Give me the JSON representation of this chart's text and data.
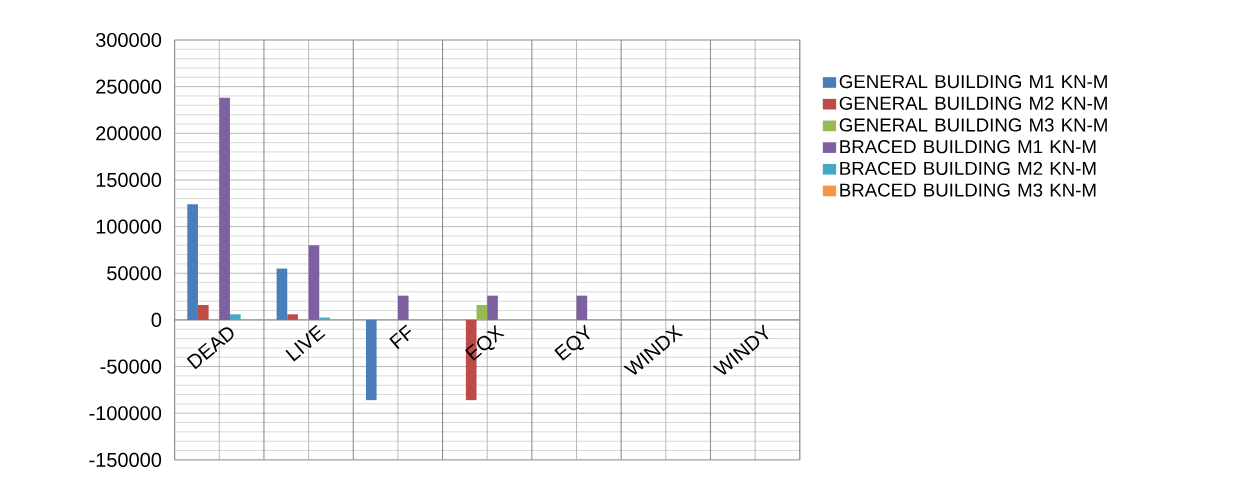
{
  "chart_data": {
    "type": "bar",
    "categories": [
      "DEAD",
      "LIVE",
      "FF",
      "EQX",
      "EQY",
      "WINDX",
      "WINDY"
    ],
    "series": [
      {
        "name": "GENERAL BUILDING M1 KN-M",
        "color": "#4a7ebb",
        "values": [
          124000,
          55000,
          -86000,
          0,
          0,
          0,
          0
        ]
      },
      {
        "name": "GENERAL BUILDING M2 KN-M",
        "color": "#be4b48",
        "values": [
          16000,
          6000,
          0,
          -86000,
          0,
          0,
          0
        ]
      },
      {
        "name": "GENERAL BUILDING M3 KN-M",
        "color": "#98b954",
        "values": [
          0,
          0,
          0,
          16000,
          0,
          0,
          0
        ]
      },
      {
        "name": "BRACED BUILDING M1 KN-M",
        "color": "#7d60a0",
        "values": [
          238000,
          80000,
          26000,
          26000,
          26000,
          0,
          0
        ]
      },
      {
        "name": "BRACED BUILDING M2 KN-M",
        "color": "#46aac5",
        "values": [
          6000,
          2500,
          0,
          0,
          0,
          0,
          0
        ]
      },
      {
        "name": "BRACED BUILDING M3 KN-M",
        "color": "#f79646",
        "values": [
          0,
          0,
          0,
          0,
          0,
          0,
          0
        ]
      }
    ],
    "ylim": [
      -150000,
      300000
    ],
    "yticks": [
      -150000,
      -100000,
      -50000,
      0,
      50000,
      100000,
      150000,
      200000,
      250000,
      300000
    ],
    "grid": true,
    "legend": "right"
  }
}
